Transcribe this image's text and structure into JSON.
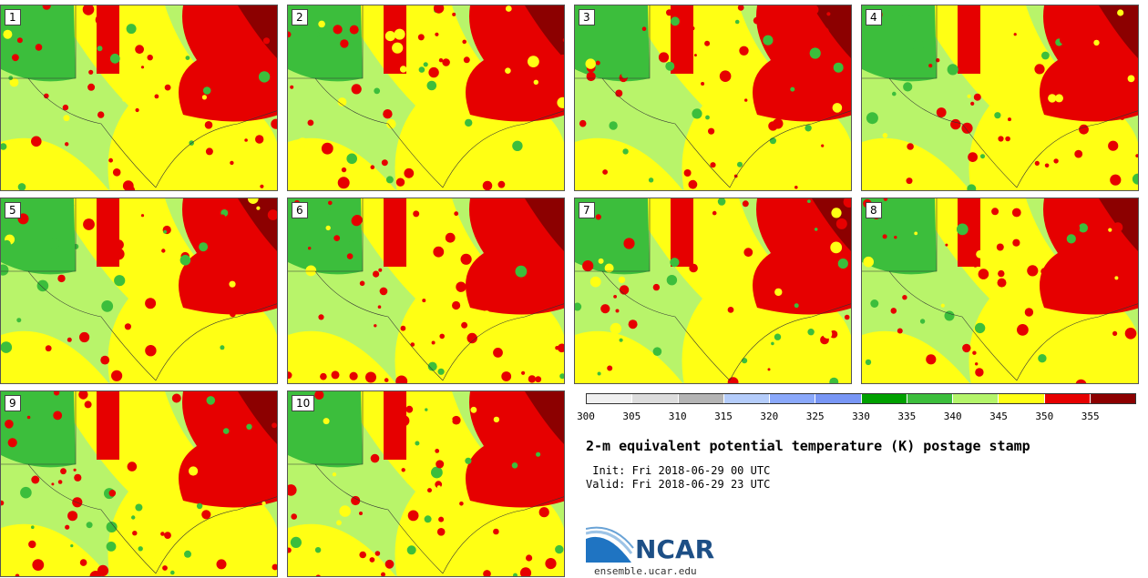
{
  "panels": [
    {
      "label": "1"
    },
    {
      "label": "2"
    },
    {
      "label": "3"
    },
    {
      "label": "4"
    },
    {
      "label": "5"
    },
    {
      "label": "6"
    },
    {
      "label": "7"
    },
    {
      "label": "8"
    },
    {
      "label": "9"
    },
    {
      "label": "10"
    }
  ],
  "colorbar": {
    "colors": [
      "#f0f0f0",
      "#dcdcdc",
      "#b4b4b4",
      "#b4ccfa",
      "#8aa8fa",
      "#7896f5",
      "#00a000",
      "#3cbe3c",
      "#b4f46a",
      "#ffff14",
      "#e60000",
      "#8c0000"
    ],
    "ticks": [
      "300",
      "305",
      "310",
      "315",
      "320",
      "325",
      "330",
      "335",
      "340",
      "345",
      "350",
      "355"
    ]
  },
  "title": "2-m equivalent potential temperature (K) postage stamp",
  "init": " Init: Fri 2018-06-29 00 UTC",
  "valid": "Valid: Fri 2018-06-29 23 UTC",
  "logo": {
    "text": "NCAR",
    "site": "ensemble.ucar.edu"
  }
}
